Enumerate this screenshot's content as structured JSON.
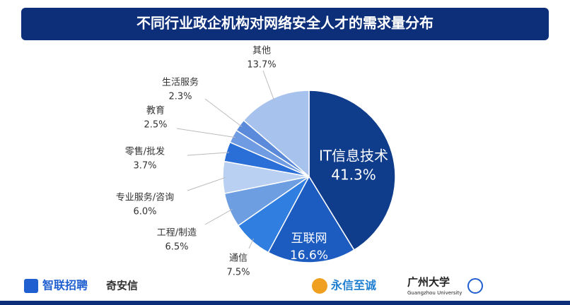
{
  "chart_data": {
    "type": "pie",
    "title": "不同行业政企机构对网络安全人才的需求量分布",
    "categories": [
      "IT信息技术",
      "互联网",
      "通信",
      "工程/制造",
      "专业服务/咨询",
      "零售/批发",
      "教育",
      "生活服务",
      "其他"
    ],
    "values": [
      41.3,
      16.6,
      7.5,
      6.5,
      6.0,
      3.7,
      2.5,
      2.3,
      13.7
    ],
    "value_labels": [
      "41.3%",
      "16.6%",
      "7.5%",
      "6.5%",
      "6.0%",
      "3.7%",
      "2.5%",
      "2.3%",
      "13.7%"
    ],
    "colors": [
      "#0f3d8c",
      "#1c5cc0",
      "#2f7ee0",
      "#6d9ee2",
      "#b9d0f2",
      "#2a6fd8",
      "#6e9be2",
      "#5a8ad9",
      "#a8c2ee"
    ]
  },
  "logos": [
    "智联招聘",
    "奇安信",
    "永信至诚",
    "广州大学",
    "Guangzhou University"
  ]
}
